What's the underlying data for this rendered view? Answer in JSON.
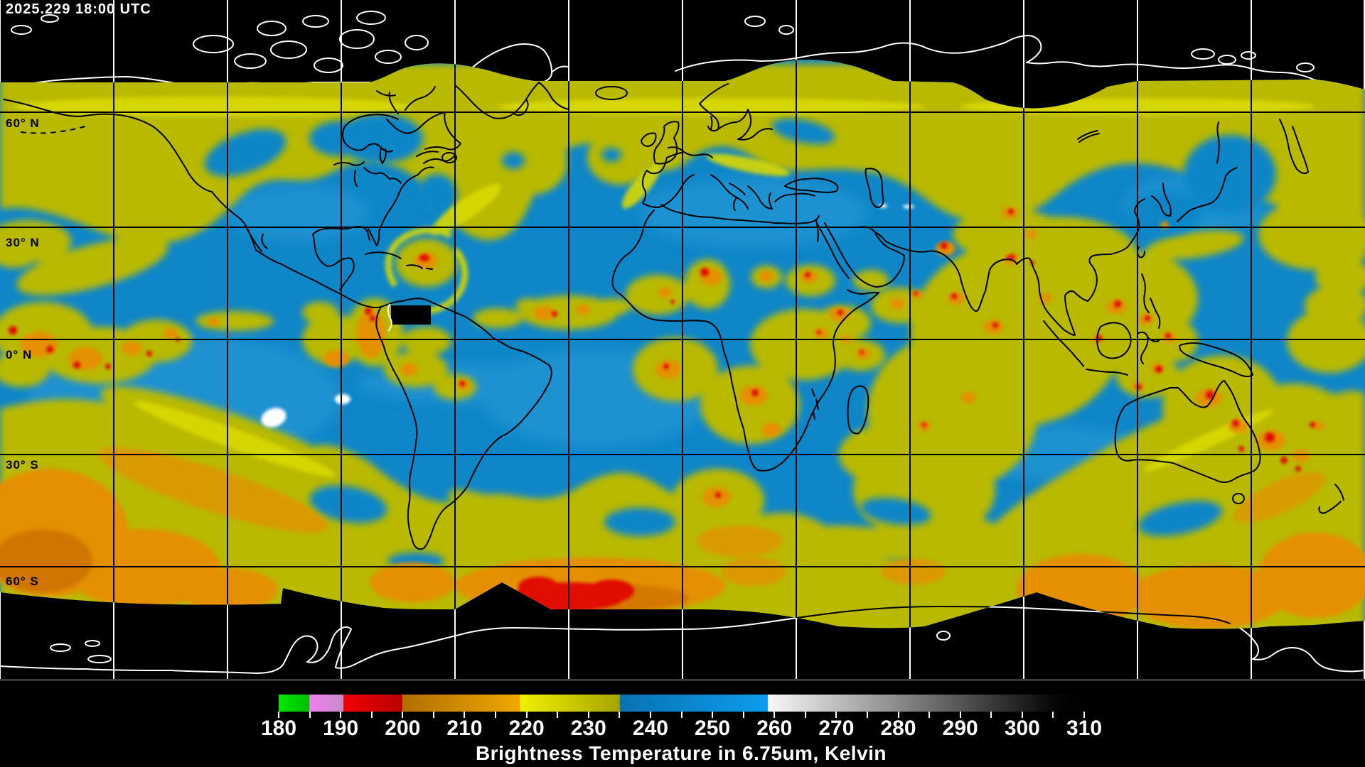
{
  "header": {
    "timestamp": "2025.229 18:00 UTC"
  },
  "map": {
    "latitude_labels": [
      "60° N",
      "30° N",
      "0° N",
      "30° S",
      "60° S"
    ],
    "graticule_step_degrees": 30,
    "colors": {
      "space_background": "#000000",
      "dry_air_blue": "#0e86c8",
      "moist_cloud_yellow": "#b9b900",
      "cold_cloud_orange": "#e49000",
      "coldest_cloud_red": "#e01000",
      "warm_surface_white": "#ffffff",
      "coastline_over_data": "#000000",
      "coastline_over_space": "#ffffff"
    }
  },
  "colorbar": {
    "caption": "Brightness Temperature in 6.75um, Kelvin",
    "min": 180,
    "max": 310,
    "major_tick_step": 10,
    "minor_tick_step": 5,
    "tick_labels": [
      "180",
      "190",
      "200",
      "210",
      "220",
      "230",
      "240",
      "250",
      "260",
      "270",
      "280",
      "290",
      "300",
      "310"
    ],
    "gradient_stops": [
      {
        "value": 180,
        "color": "#00e800"
      },
      {
        "value": 184.9,
        "color": "#00bf00"
      },
      {
        "value": 185,
        "color": "#f07ff0"
      },
      {
        "value": 190.4,
        "color": "#c48cc8"
      },
      {
        "value": 190.5,
        "color": "#f00000"
      },
      {
        "value": 199.9,
        "color": "#bb0000"
      },
      {
        "value": 200,
        "color": "#b06e00"
      },
      {
        "value": 218.9,
        "color": "#f0a800"
      },
      {
        "value": 219,
        "color": "#f0f000"
      },
      {
        "value": 235,
        "color": "#a4a400"
      },
      {
        "value": 235.1,
        "color": "#0a72b4"
      },
      {
        "value": 258.9,
        "color": "#0c9cec"
      },
      {
        "value": 259,
        "color": "#f8f8f8"
      },
      {
        "value": 305,
        "color": "#060606"
      },
      {
        "value": 310,
        "color": "#000000"
      }
    ]
  }
}
